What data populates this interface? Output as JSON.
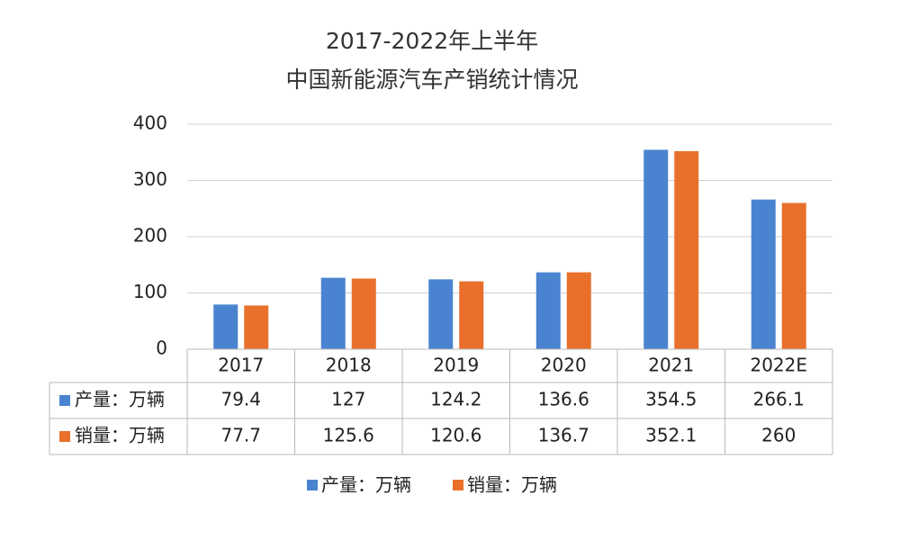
{
  "chart_data": {
    "type": "bar",
    "title": [
      "2017-2022年上半年",
      "中国新能源汽车产销统计情况"
    ],
    "categories": [
      "2017",
      "2018",
      "2019",
      "2020",
      "2021",
      "2022E"
    ],
    "series": [
      {
        "name": "产量：万辆",
        "color": "#4a84d0",
        "values": [
          79.4,
          127,
          124.2,
          136.6,
          354.5,
          266.1
        ]
      },
      {
        "name": "销量：万辆",
        "color": "#e8702b",
        "values": [
          77.7,
          125.6,
          120.6,
          136.7,
          352.1,
          260
        ]
      }
    ],
    "ylim": [
      0,
      400
    ],
    "yticks": [
      0,
      100,
      200,
      300,
      400
    ],
    "grid": true,
    "data_table": true,
    "legend": "bottom"
  }
}
